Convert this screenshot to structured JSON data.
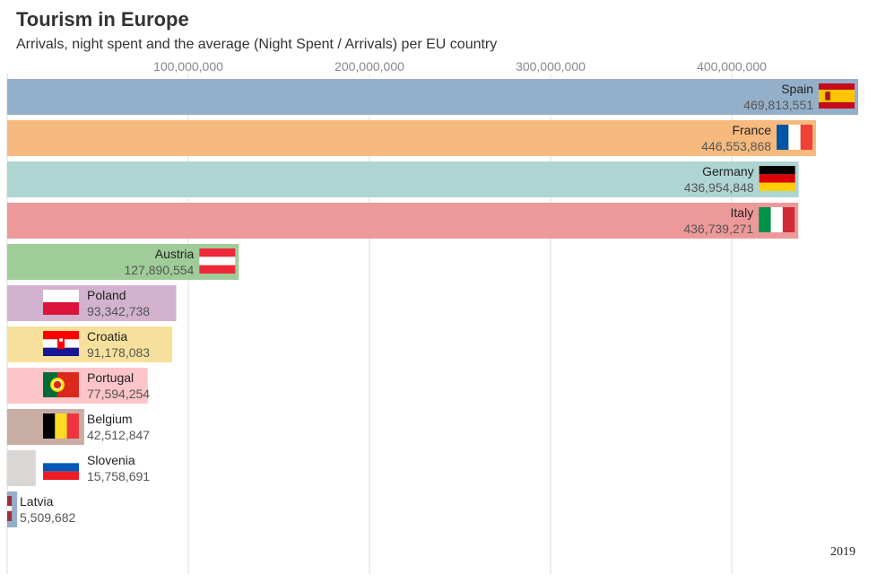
{
  "title": "Tourism in Europe",
  "subtitle": "Arrivals, night spent and the average (Night Spent / Arrivals) per EU country",
  "chart_data": {
    "type": "bar",
    "orientation": "horizontal",
    "xlim": [
      0,
      475000000
    ],
    "ticks": [
      {
        "value": 100000000,
        "label": "100,000,000"
      },
      {
        "value": 200000000,
        "label": "200,000,000"
      },
      {
        "value": 300000000,
        "label": "300,000,000"
      },
      {
        "value": 400000000,
        "label": "400,000,000"
      }
    ],
    "grid": true,
    "year": "2019",
    "bars": [
      {
        "country": "Spain",
        "value": 469813551,
        "label": "469,813,551",
        "color": "#94afc9",
        "flag": "spain"
      },
      {
        "country": "France",
        "value": 446553868,
        "label": "446,553,868",
        "color": "#f6ba7e",
        "flag": "france"
      },
      {
        "country": "Germany",
        "value": 436954848,
        "label": "436,954,848",
        "color": "#aed5d2",
        "flag": "germany"
      },
      {
        "country": "Italy",
        "value": 436739271,
        "label": "436,739,271",
        "color": "#ed9999",
        "flag": "italy"
      },
      {
        "country": "Austria",
        "value": 127890554,
        "label": "127,890,554",
        "color": "#9fcc98",
        "flag": "austria"
      },
      {
        "country": "Poland",
        "value": 93342738,
        "label": "93,342,738",
        "color": "#d2b2ce",
        "flag": "poland"
      },
      {
        "country": "Croatia",
        "value": 91178083,
        "label": "91,178,083",
        "color": "#f6e09b",
        "flag": "croatia"
      },
      {
        "country": "Portugal",
        "value": 77594254,
        "label": "77,594,254",
        "color": "#fdc5ca",
        "flag": "portugal"
      },
      {
        "country": "Belgium",
        "value": 42512847,
        "label": "42,512,847",
        "color": "#c8ada3",
        "flag": "belgium"
      },
      {
        "country": "Slovenia",
        "value": 15758691,
        "label": "15,758,691",
        "color": "#d9d6d3",
        "flag": "slovenia"
      },
      {
        "country": "Latvia",
        "value": 5509682,
        "label": "5,509,682",
        "color": "#94afc9",
        "flag": "latvia"
      }
    ]
  }
}
